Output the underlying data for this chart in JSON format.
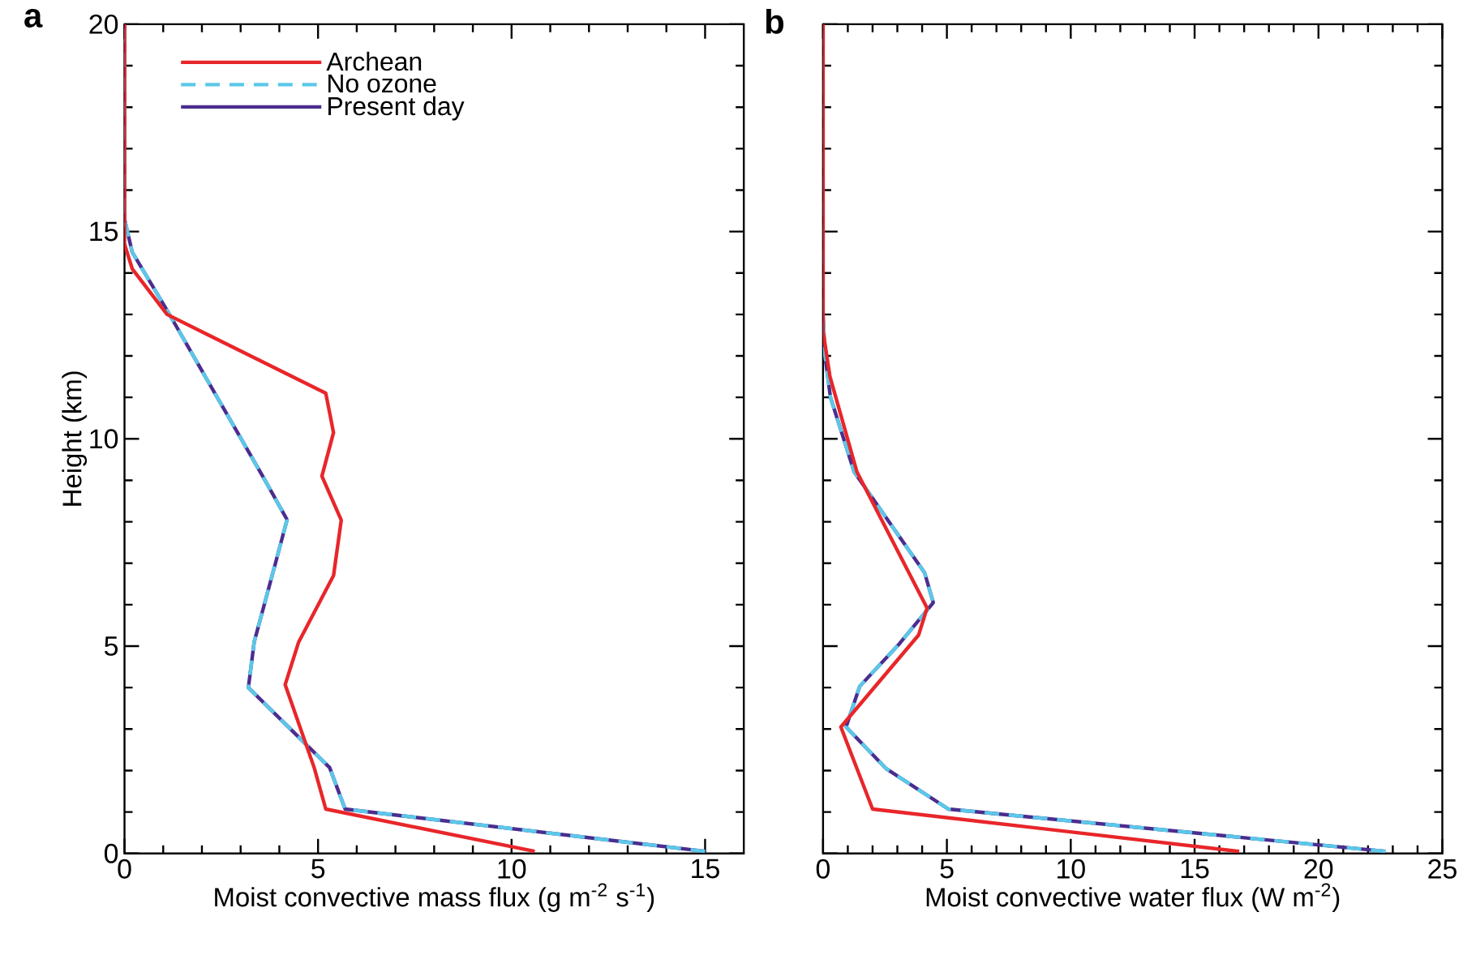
{
  "chart_data": [
    {
      "type": "line",
      "title": "a",
      "xlabel": "Moist convective mass flux (g m$^{-2}$ s$^{-1}$)",
      "ylabel": "Height (km)",
      "xlim": [
        0,
        16
      ],
      "xticks": [
        0,
        5,
        10,
        15
      ],
      "ylim": [
        0,
        20
      ],
      "yticks": [
        0,
        5,
        10,
        15,
        20
      ],
      "legend": "top left",
      "series": [
        {
          "name": "Archean",
          "color": "#e8262a",
          "line_style": "solid",
          "x": [
            10.6,
            5.2,
            4.9,
            4.15,
            4.5,
            5.4,
            5.6,
            5.1,
            5.4,
            5.2,
            1.1,
            0.2,
            0,
            0
          ],
          "values": [
            0.05,
            1.07,
            2.07,
            4.07,
            5.1,
            6.7,
            8.04,
            9.1,
            10.15,
            11.1,
            13.0,
            14.1,
            14.7,
            20
          ]
        },
        {
          "name": "No ozone",
          "color": "#5bc8e8",
          "line_style": "dashed",
          "x": [
            15.0,
            5.7,
            5.3,
            3.2,
            3.35,
            3.9,
            4.2,
            3.6,
            1.1,
            0.2,
            0,
            0
          ],
          "values": [
            0.05,
            1.07,
            2.07,
            4.0,
            5.1,
            7.0,
            8.05,
            9.05,
            13.1,
            14.5,
            15.3,
            20
          ]
        },
        {
          "name": "Present day",
          "color": "#4b2d8f",
          "line_style": "solid",
          "x": [
            15.0,
            5.7,
            5.3,
            3.2,
            3.35,
            3.9,
            4.2,
            3.6,
            1.1,
            0.2,
            0,
            0
          ],
          "values": [
            0.05,
            1.07,
            2.07,
            4.0,
            5.1,
            7.0,
            8.05,
            9.05,
            13.1,
            14.5,
            15.3,
            20
          ]
        }
      ]
    },
    {
      "type": "line",
      "title": "b",
      "xlabel": "Moist convective water flux (W m$^{-2}$)",
      "xlim": [
        0,
        25
      ],
      "xticks": [
        0,
        5,
        10,
        15,
        20,
        25
      ],
      "ylim": [
        0,
        20
      ],
      "yticks": [
        0,
        5,
        10,
        15,
        20
      ],
      "tick_labels": "x",
      "series": [
        {
          "color": "#e8262a",
          "line_style": "solid",
          "x": [
            16.8,
            2.0,
            0.72,
            3.86,
            4.2,
            1.37,
            0.28,
            0,
            0
          ],
          "values": [
            0.05,
            1.07,
            3.05,
            5.27,
            5.92,
            9.2,
            11.5,
            12.6,
            20
          ]
        },
        {
          "color": "#5bc8e8",
          "line_style": "dashed",
          "x": [
            22.7,
            5.06,
            2.56,
            0.93,
            1.48,
            3.1,
            4.45,
            4.1,
            1.26,
            0.3,
            0.07,
            0,
            0
          ],
          "values": [
            0.05,
            1.07,
            2.04,
            3.05,
            4.03,
            5.07,
            6.05,
            6.77,
            9.2,
            11.0,
            12.05,
            13.0,
            20
          ]
        },
        {
          "color": "#4b2d8f",
          "line_style": "solid",
          "x": [
            22.7,
            5.06,
            2.56,
            0.93,
            1.48,
            3.1,
            4.45,
            4.1,
            1.26,
            0.3,
            0.07,
            0,
            0
          ],
          "values": [
            0.05,
            1.07,
            2.04,
            3.05,
            4.03,
            5.07,
            6.05,
            6.77,
            9.2,
            11.0,
            12.05,
            13.0,
            20
          ]
        }
      ]
    }
  ]
}
